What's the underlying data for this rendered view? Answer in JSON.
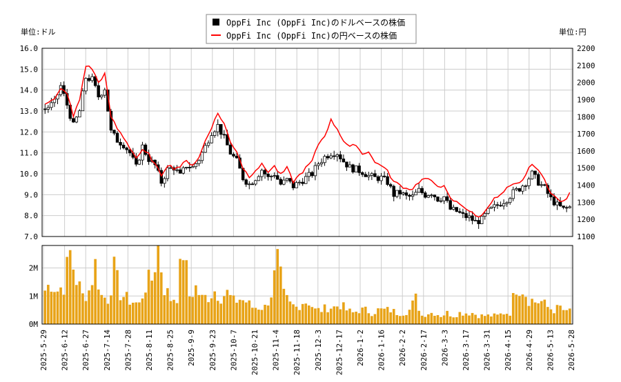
{
  "chart_data": [
    {
      "type": "candlestick",
      "legend": [
        {
          "name": "OppFi Inc (OppFi Inc)のドルベースの株価",
          "color": "#000000",
          "marker": "square"
        },
        {
          "name": "OppFi Inc (OppFi Inc)の円ベースの株価",
          "color": "#ff0000",
          "marker": "line"
        }
      ],
      "left_axis_unit": "単位:ドル",
      "right_axis_unit": "単位:円",
      "ylim_left": [
        7.0,
        16.0
      ],
      "ylim_right": [
        1100,
        2200
      ],
      "yticks_left": [
        "7.0",
        "8.0",
        "9.0",
        "10.0",
        "11.0",
        "12.0",
        "13.0",
        "14.0",
        "15.0",
        "16.0"
      ],
      "yticks_right": [
        "1100",
        "1200",
        "1300",
        "1400",
        "1500",
        "1600",
        "1700",
        "1800",
        "1900",
        "2000",
        "2100",
        "2200"
      ],
      "xticks": [
        "2025-5-29",
        "2025-6-12",
        "2025-6-27",
        "2025-7-14",
        "2025-7-28",
        "2025-8-11",
        "2025-8-25",
        "2025-9-9",
        "2025-9-23",
        "2025-10-7",
        "2025-10-21",
        "2025-11-4",
        "2025-11-18",
        "2025-12-3",
        "2025-12-17",
        "2026-1-2",
        "2026-1-16",
        "2026-2-2",
        "2026-2-17",
        "2026-3-3",
        "2026-3-17",
        "2026-3-31",
        "2026-4-15",
        "2026-4-29",
        "2026-5-13",
        "2026-5-28"
      ],
      "grid": true,
      "usd_close_anchors": [
        [
          0,
          13.1
        ],
        [
          3,
          13.4
        ],
        [
          5,
          14.2
        ],
        [
          7,
          13.3
        ],
        [
          9,
          12.3
        ],
        [
          11,
          13.0
        ],
        [
          13,
          14.6
        ],
        [
          15,
          14.5
        ],
        [
          17,
          13.7
        ],
        [
          19,
          14.1
        ],
        [
          21,
          12.0
        ],
        [
          23,
          11.6
        ],
        [
          25,
          11.4
        ],
        [
          27,
          11.0
        ],
        [
          29,
          10.3
        ],
        [
          31,
          11.3
        ],
        [
          33,
          10.7
        ],
        [
          35,
          10.4
        ],
        [
          37,
          9.6
        ],
        [
          39,
          10.2
        ],
        [
          41,
          10.3
        ],
        [
          43,
          9.9
        ],
        [
          45,
          10.4
        ],
        [
          47,
          10.3
        ],
        [
          49,
          10.7
        ],
        [
          51,
          11.3
        ],
        [
          53,
          12.0
        ],
        [
          55,
          12.3
        ],
        [
          57,
          11.7
        ],
        [
          59,
          11.0
        ],
        [
          61,
          10.6
        ],
        [
          63,
          9.8
        ],
        [
          65,
          9.5
        ],
        [
          67,
          9.8
        ],
        [
          69,
          10.2
        ],
        [
          71,
          9.8
        ],
        [
          73,
          10.0
        ],
        [
          75,
          9.5
        ],
        [
          77,
          9.7
        ],
        [
          79,
          9.4
        ],
        [
          81,
          9.6
        ],
        [
          83,
          9.8
        ],
        [
          85,
          10.0
        ],
        [
          87,
          10.5
        ],
        [
          89,
          10.8
        ],
        [
          91,
          11.0
        ],
        [
          93,
          11.0
        ],
        [
          95,
          10.6
        ],
        [
          97,
          10.3
        ],
        [
          99,
          10.2
        ],
        [
          101,
          10.1
        ],
        [
          103,
          9.9
        ],
        [
          105,
          9.8
        ],
        [
          107,
          9.8
        ],
        [
          109,
          9.6
        ],
        [
          111,
          9.0
        ],
        [
          113,
          9.1
        ],
        [
          115,
          8.9
        ],
        [
          117,
          8.9
        ],
        [
          119,
          9.2
        ],
        [
          121,
          9.0
        ],
        [
          123,
          9.1
        ],
        [
          125,
          8.8
        ],
        [
          127,
          8.9
        ],
        [
          129,
          8.3
        ],
        [
          131,
          8.2
        ],
        [
          133,
          8.0
        ],
        [
          135,
          7.9
        ],
        [
          137,
          7.7
        ],
        [
          139,
          7.8
        ],
        [
          141,
          8.2
        ],
        [
          143,
          8.4
        ],
        [
          145,
          8.6
        ],
        [
          147,
          8.8
        ],
        [
          149,
          9.1
        ],
        [
          151,
          9.3
        ],
        [
          153,
          9.6
        ],
        [
          155,
          10.0
        ],
        [
          157,
          9.6
        ],
        [
          159,
          9.3
        ],
        [
          161,
          8.8
        ],
        [
          163,
          8.5
        ],
        [
          165,
          8.3
        ],
        [
          167,
          8.4
        ]
      ],
      "jpy_close_anchors": [
        [
          0,
          1880
        ],
        [
          3,
          1900
        ],
        [
          5,
          1960
        ],
        [
          7,
          1940
        ],
        [
          9,
          1800
        ],
        [
          11,
          1900
        ],
        [
          13,
          2100
        ],
        [
          15,
          2080
        ],
        [
          17,
          2000
        ],
        [
          19,
          2050
        ],
        [
          21,
          1800
        ],
        [
          23,
          1730
        ],
        [
          25,
          1680
        ],
        [
          27,
          1620
        ],
        [
          29,
          1560
        ],
        [
          31,
          1600
        ],
        [
          33,
          1580
        ],
        [
          35,
          1520
        ],
        [
          37,
          1460
        ],
        [
          39,
          1520
        ],
        [
          41,
          1500
        ],
        [
          43,
          1510
        ],
        [
          45,
          1540
        ],
        [
          47,
          1520
        ],
        [
          49,
          1560
        ],
        [
          51,
          1660
        ],
        [
          53,
          1740
        ],
        [
          55,
          1820
        ],
        [
          57,
          1760
        ],
        [
          59,
          1650
        ],
        [
          61,
          1600
        ],
        [
          63,
          1500
        ],
        [
          65,
          1450
        ],
        [
          67,
          1490
        ],
        [
          69,
          1520
        ],
        [
          71,
          1480
        ],
        [
          73,
          1510
        ],
        [
          75,
          1460
        ],
        [
          77,
          1500
        ],
        [
          79,
          1420
        ],
        [
          81,
          1460
        ],
        [
          83,
          1500
        ],
        [
          85,
          1540
        ],
        [
          87,
          1640
        ],
        [
          89,
          1690
        ],
        [
          91,
          1780
        ],
        [
          93,
          1730
        ],
        [
          95,
          1660
        ],
        [
          97,
          1620
        ],
        [
          99,
          1640
        ],
        [
          101,
          1580
        ],
        [
          103,
          1600
        ],
        [
          105,
          1530
        ],
        [
          107,
          1520
        ],
        [
          109,
          1480
        ],
        [
          111,
          1420
        ],
        [
          113,
          1400
        ],
        [
          115,
          1380
        ],
        [
          117,
          1380
        ],
        [
          119,
          1420
        ],
        [
          121,
          1440
        ],
        [
          123,
          1420
        ],
        [
          125,
          1400
        ],
        [
          127,
          1390
        ],
        [
          129,
          1320
        ],
        [
          131,
          1300
        ],
        [
          133,
          1280
        ],
        [
          135,
          1250
        ],
        [
          137,
          1220
        ],
        [
          139,
          1220
        ],
        [
          141,
          1280
        ],
        [
          143,
          1320
        ],
        [
          145,
          1340
        ],
        [
          147,
          1380
        ],
        [
          149,
          1400
        ],
        [
          151,
          1410
        ],
        [
          153,
          1460
        ],
        [
          155,
          1530
        ],
        [
          157,
          1480
        ],
        [
          159,
          1440
        ],
        [
          161,
          1350
        ],
        [
          163,
          1320
        ],
        [
          165,
          1300
        ],
        [
          167,
          1350
        ]
      ],
      "volume_anchors": [
        [
          0,
          1.2
        ],
        [
          2,
          1.5
        ],
        [
          4,
          1.2
        ],
        [
          6,
          1.4
        ],
        [
          8,
          2.5
        ],
        [
          10,
          1.6
        ],
        [
          12,
          1.0
        ],
        [
          14,
          1.2
        ],
        [
          16,
          2.1
        ],
        [
          18,
          1.0
        ],
        [
          20,
          0.9
        ],
        [
          22,
          1.9
        ],
        [
          24,
          1.1
        ],
        [
          26,
          0.9
        ],
        [
          28,
          0.8
        ],
        [
          30,
          0.7
        ],
        [
          32,
          1.4
        ],
        [
          34,
          1.6
        ],
        [
          36,
          2.8
        ],
        [
          38,
          1.3
        ],
        [
          40,
          0.9
        ],
        [
          42,
          1.0
        ],
        [
          44,
          2.7
        ],
        [
          46,
          1.0
        ],
        [
          48,
          1.3
        ],
        [
          50,
          0.9
        ],
        [
          52,
          1.0
        ],
        [
          54,
          1.2
        ],
        [
          56,
          1.0
        ],
        [
          58,
          1.1
        ],
        [
          60,
          0.8
        ],
        [
          62,
          0.9
        ],
        [
          64,
          0.8
        ],
        [
          66,
          0.6
        ],
        [
          68,
          0.6
        ],
        [
          70,
          0.6
        ],
        [
          72,
          1.1
        ],
        [
          74,
          2.2
        ],
        [
          76,
          1.0
        ],
        [
          78,
          0.7
        ],
        [
          80,
          0.6
        ],
        [
          82,
          0.8
        ],
        [
          84,
          0.8
        ],
        [
          86,
          0.5
        ],
        [
          88,
          0.5
        ],
        [
          90,
          0.6
        ],
        [
          92,
          0.6
        ],
        [
          94,
          0.7
        ],
        [
          96,
          0.5
        ],
        [
          98,
          0.4
        ],
        [
          100,
          0.5
        ],
        [
          102,
          0.5
        ],
        [
          104,
          0.4
        ],
        [
          106,
          0.5
        ],
        [
          108,
          0.5
        ],
        [
          110,
          0.5
        ],
        [
          112,
          0.4
        ],
        [
          114,
          0.4
        ],
        [
          116,
          0.5
        ],
        [
          118,
          0.9
        ],
        [
          120,
          0.3
        ],
        [
          122,
          0.4
        ],
        [
          124,
          0.4
        ],
        [
          126,
          0.3
        ],
        [
          128,
          0.4
        ],
        [
          130,
          0.3
        ],
        [
          132,
          0.4
        ],
        [
          134,
          0.4
        ],
        [
          136,
          0.4
        ],
        [
          138,
          0.3
        ],
        [
          140,
          0.3
        ],
        [
          142,
          0.3
        ],
        [
          144,
          0.3
        ],
        [
          146,
          0.4
        ],
        [
          148,
          0.4
        ],
        [
          150,
          1.4
        ],
        [
          152,
          1.3
        ],
        [
          154,
          0.9
        ],
        [
          156,
          0.8
        ],
        [
          158,
          0.8
        ],
        [
          160,
          0.6
        ],
        [
          162,
          0.5
        ],
        [
          164,
          0.6
        ],
        [
          166,
          0.4
        ],
        [
          167,
          0.5
        ]
      ],
      "volume_yticks": [
        "0M",
        "1M",
        "2M"
      ],
      "volume_ylim": [
        0,
        2.8
      ]
    }
  ]
}
